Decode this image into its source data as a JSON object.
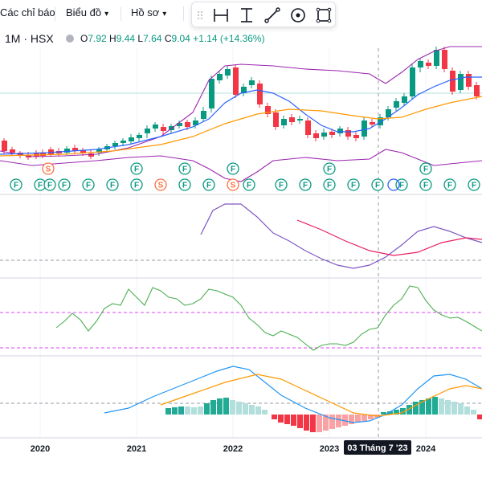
{
  "toolbar": {
    "indicators_label": "Các chỉ báo",
    "chart_label": "Biểu đồ",
    "profile_label": "Hồ sơ",
    "tools": [
      "horizontal-segment-tool",
      "vertical-segment-tool",
      "trend-line-tool",
      "target-tool",
      "rectangle-tool"
    ]
  },
  "legend": {
    "symbol": "1M · HSX",
    "open_key": "O",
    "open": "7.92",
    "high_key": "H",
    "high": "9.44",
    "low_key": "L",
    "low": "7.64",
    "close_key": "C",
    "close": "9.04",
    "change": "+1.14 (+14.36%)"
  },
  "colors": {
    "up": "#089981",
    "down": "#f23645",
    "upper_band": "#9c27b0",
    "ma_blue": "#2962ff",
    "ma_orange": "#ff9800",
    "rsi": "#7e57c2",
    "rsi_ma": "#e91e63",
    "osc": "#4caf50",
    "macd": "#2196f3",
    "signal": "#ff9800",
    "badge_f": "#089981",
    "badge_s": "#ff7043"
  },
  "x_axis": {
    "labels": [
      "2020",
      "2021",
      "2022",
      "2023",
      "2024"
    ],
    "crosshair_label": "03 Tháng 7 '23"
  },
  "chart_data": {
    "type": "candlestick",
    "symbol": "1M · HSX",
    "events_top_row": [
      "S",
      "F",
      "F",
      "F",
      "F",
      "F"
    ],
    "events_bottom_row": [
      "F",
      "F",
      "F",
      "F",
      "F",
      "F",
      "F",
      "S",
      "F",
      "F",
      "S",
      "F",
      "F",
      "F",
      "F",
      "F",
      "F",
      "F",
      "F",
      "F",
      "F"
    ]
  }
}
